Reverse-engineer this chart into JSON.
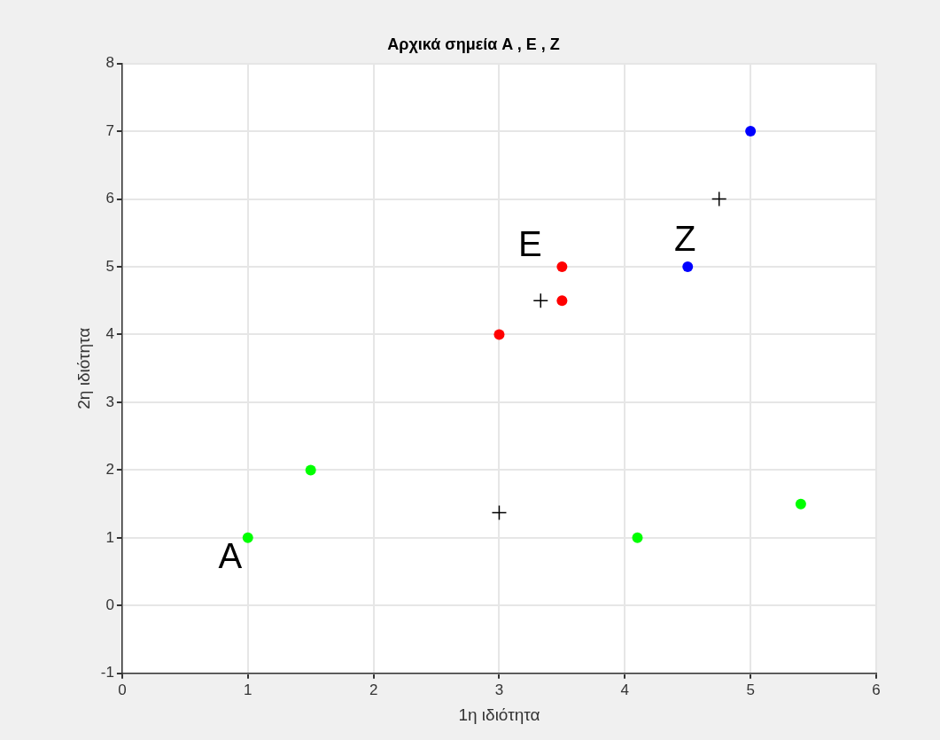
{
  "chart_data": {
    "type": "scatter",
    "title": "Αρχικά σημεία A , E , Z",
    "xlabel": "1η ιδιότητα",
    "ylabel": "2η ιδιότητα",
    "xlim": [
      0,
      6
    ],
    "xticks": [
      0,
      1,
      2,
      3,
      4,
      5,
      6
    ],
    "ylim": [
      -1,
      8
    ],
    "yticks": [
      -1,
      0,
      1,
      2,
      3,
      4,
      5,
      6,
      7,
      8
    ],
    "grid": true,
    "legend": false,
    "marker": "circle",
    "series": [
      {
        "color": "#00ff00",
        "x": [
          1,
          1.5,
          4.1,
          5.4
        ],
        "values": [
          1,
          2,
          1,
          1.5
        ]
      },
      {
        "color": "#ff0000",
        "x": [
          3,
          3.5,
          3.5
        ],
        "values": [
          4,
          4.5,
          5
        ]
      },
      {
        "color": "#0000ff",
        "x": [
          4.5,
          5
        ],
        "values": [
          5,
          7
        ]
      },
      {
        "color": "#000000",
        "marker": "cross",
        "x": [
          3,
          3.33,
          4.75
        ],
        "values": [
          1.37,
          4.5,
          6
        ]
      }
    ],
    "annotations": [
      {
        "text": "A",
        "x": 1,
        "y": 1
      },
      {
        "text": "E",
        "x": 3.5,
        "y": 5
      },
      {
        "text": "Z",
        "x": 4.5,
        "y": 5
      }
    ]
  }
}
